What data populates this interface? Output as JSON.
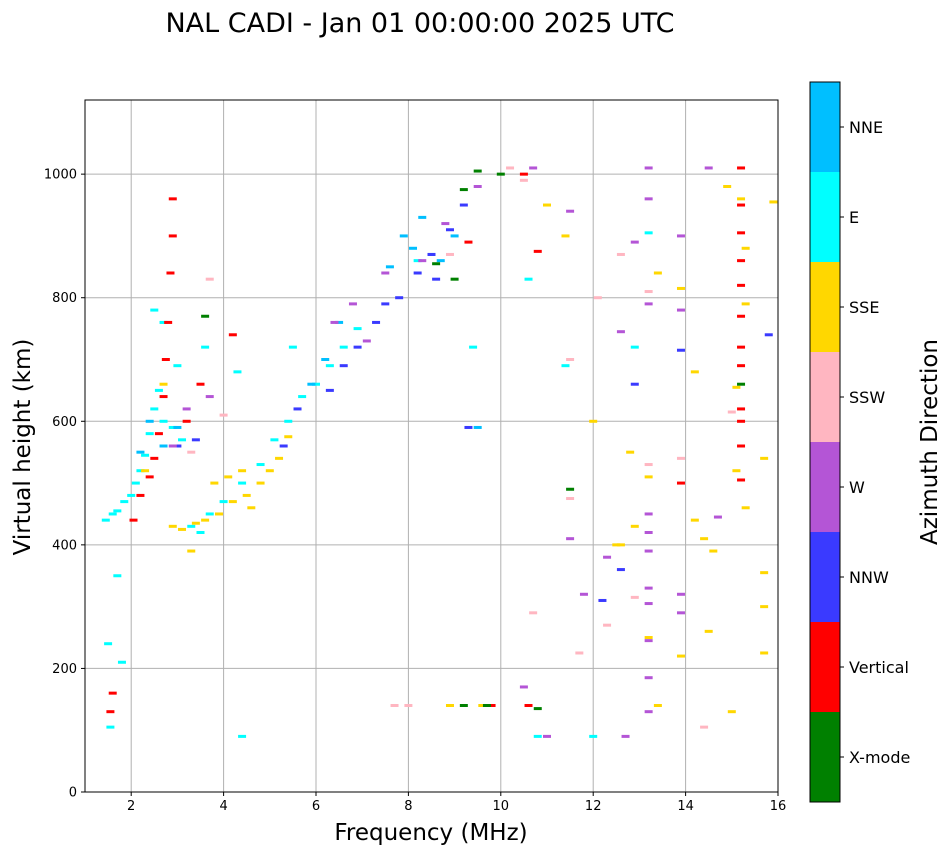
{
  "chart_data": {
    "type": "scatter",
    "title": "NAL CADI - Jan 01 00:00:00 2025 UTC",
    "xlabel": "Frequency (MHz)",
    "ylabel": "Virtual height (km)",
    "xlim": [
      1.0,
      16.0
    ],
    "ylim": [
      0,
      1120
    ],
    "xticks": [
      2,
      4,
      6,
      8,
      10,
      12,
      14,
      16
    ],
    "yticks": [
      0,
      200,
      400,
      600,
      800,
      1000
    ],
    "grid": true,
    "colorbar": {
      "title": "Azimuth Direction",
      "categories": [
        {
          "name": "X-mode",
          "color": "#008000"
        },
        {
          "name": "Vertical",
          "color": "#ff0000"
        },
        {
          "name": "NNW",
          "color": "#3a3aff"
        },
        {
          "name": "W",
          "color": "#b455d6"
        },
        {
          "name": "SSW",
          "color": "#ffb6c1"
        },
        {
          "name": "SSE",
          "color": "#ffd700"
        },
        {
          "name": "E",
          "color": "#00ffff"
        },
        {
          "name": "NNE",
          "color": "#00bfff"
        }
      ]
    },
    "traces": [
      {
        "category": "E",
        "points": [
          [
            1.45,
            440
          ],
          [
            1.6,
            450
          ],
          [
            1.7,
            455
          ],
          [
            1.85,
            470
          ],
          [
            2.0,
            480
          ],
          [
            2.1,
            500
          ],
          [
            2.2,
            520
          ],
          [
            2.3,
            545
          ],
          [
            2.4,
            580
          ],
          [
            2.5,
            620
          ],
          [
            2.6,
            650
          ],
          [
            2.7,
            600
          ],
          [
            2.9,
            590
          ],
          [
            3.1,
            570
          ],
          [
            3.3,
            430
          ],
          [
            3.5,
            420
          ],
          [
            3.7,
            450
          ],
          [
            4.0,
            470
          ],
          [
            4.4,
            500
          ],
          [
            4.8,
            530
          ],
          [
            5.1,
            570
          ],
          [
            5.4,
            600
          ],
          [
            5.7,
            640
          ],
          [
            6.0,
            660
          ],
          [
            6.3,
            690
          ],
          [
            6.6,
            720
          ],
          [
            6.9,
            750
          ],
          [
            2.5,
            780
          ],
          [
            2.7,
            760
          ],
          [
            3.0,
            690
          ],
          [
            3.6,
            720
          ],
          [
            4.3,
            680
          ],
          [
            5.5,
            720
          ],
          [
            8.2,
            860
          ],
          [
            9.4,
            720
          ],
          [
            10.6,
            830
          ],
          [
            10.8,
            90
          ],
          [
            11.4,
            690
          ],
          [
            12.0,
            90
          ],
          [
            12.9,
            720
          ],
          [
            13.2,
            905
          ],
          [
            4.4,
            90
          ],
          [
            1.5,
            240
          ],
          [
            1.7,
            350
          ],
          [
            1.55,
            105
          ],
          [
            1.8,
            210
          ]
        ]
      },
      {
        "category": "NNE",
        "points": [
          [
            2.2,
            550
          ],
          [
            2.4,
            600
          ],
          [
            2.7,
            560
          ],
          [
            3.0,
            590
          ],
          [
            5.9,
            660
          ],
          [
            6.2,
            700
          ],
          [
            6.5,
            760
          ],
          [
            7.6,
            850
          ],
          [
            8.1,
            880
          ],
          [
            8.5,
            870
          ],
          [
            8.7,
            860
          ],
          [
            9.0,
            900
          ],
          [
            9.5,
            590
          ],
          [
            8.3,
            930
          ],
          [
            7.9,
            900
          ]
        ]
      },
      {
        "category": "SSE",
        "points": [
          [
            2.9,
            430
          ],
          [
            3.1,
            425
          ],
          [
            3.4,
            435
          ],
          [
            3.6,
            440
          ],
          [
            3.9,
            450
          ],
          [
            4.2,
            470
          ],
          [
            4.5,
            480
          ],
          [
            4.8,
            500
          ],
          [
            5.0,
            520
          ],
          [
            5.2,
            540
          ],
          [
            4.1,
            510
          ],
          [
            4.4,
            520
          ],
          [
            4.6,
            460
          ],
          [
            3.8,
            500
          ],
          [
            5.4,
            575
          ],
          [
            3.3,
            390
          ],
          [
            2.3,
            520
          ],
          [
            2.7,
            660
          ],
          [
            11.0,
            950
          ],
          [
            11.4,
            900
          ],
          [
            12.0,
            600
          ],
          [
            12.5,
            400
          ],
          [
            12.8,
            550
          ],
          [
            13.2,
            510
          ],
          [
            13.2,
            250
          ],
          [
            13.4,
            840
          ],
          [
            13.9,
            815
          ],
          [
            14.2,
            680
          ],
          [
            14.2,
            440
          ],
          [
            14.4,
            410
          ],
          [
            14.6,
            390
          ],
          [
            14.9,
            980
          ],
          [
            15.1,
            655
          ],
          [
            15.1,
            520
          ],
          [
            15.2,
            960
          ],
          [
            15.3,
            880
          ],
          [
            15.3,
            790
          ],
          [
            15.3,
            460
          ],
          [
            15.7,
            540
          ],
          [
            15.7,
            355
          ],
          [
            15.7,
            300
          ],
          [
            15.7,
            225
          ],
          [
            15.0,
            130
          ],
          [
            14.5,
            260
          ],
          [
            13.9,
            220
          ],
          [
            13.4,
            140
          ],
          [
            12.6,
            400
          ],
          [
            12.9,
            430
          ],
          [
            8.9,
            140
          ],
          [
            9.6,
            140
          ],
          [
            15.9,
            955
          ]
        ]
      },
      {
        "category": "Vertical",
        "points": [
          [
            2.05,
            440
          ],
          [
            2.2,
            480
          ],
          [
            2.4,
            510
          ],
          [
            2.5,
            540
          ],
          [
            2.6,
            580
          ],
          [
            2.7,
            640
          ],
          [
            2.75,
            700
          ],
          [
            2.8,
            760
          ],
          [
            2.85,
            840
          ],
          [
            2.9,
            900
          ],
          [
            2.9,
            960
          ],
          [
            3.2,
            600
          ],
          [
            3.5,
            660
          ],
          [
            4.2,
            740
          ],
          [
            1.6,
            160
          ],
          [
            1.55,
            130
          ],
          [
            9.8,
            140
          ],
          [
            10.5,
            1000
          ],
          [
            10.8,
            875
          ],
          [
            10.6,
            140
          ],
          [
            13.9,
            500
          ],
          [
            15.2,
            1010
          ],
          [
            15.2,
            950
          ],
          [
            15.2,
            905
          ],
          [
            15.2,
            860
          ],
          [
            15.2,
            820
          ],
          [
            15.2,
            770
          ],
          [
            15.2,
            720
          ],
          [
            15.2,
            690
          ],
          [
            15.2,
            620
          ],
          [
            15.2,
            600
          ],
          [
            15.2,
            560
          ],
          [
            15.2,
            505
          ],
          [
            9.3,
            890
          ]
        ]
      },
      {
        "category": "NNW",
        "points": [
          [
            3.0,
            560
          ],
          [
            3.4,
            570
          ],
          [
            5.3,
            560
          ],
          [
            5.6,
            620
          ],
          [
            6.3,
            650
          ],
          [
            6.6,
            690
          ],
          [
            6.9,
            720
          ],
          [
            7.3,
            760
          ],
          [
            7.8,
            800
          ],
          [
            8.2,
            840
          ],
          [
            8.5,
            870
          ],
          [
            8.9,
            910
          ],
          [
            9.2,
            950
          ],
          [
            9.3,
            590
          ],
          [
            12.9,
            660
          ],
          [
            13.9,
            715
          ],
          [
            15.8,
            740
          ],
          [
            12.2,
            310
          ],
          [
            12.6,
            360
          ],
          [
            8.6,
            830
          ],
          [
            7.5,
            790
          ]
        ]
      },
      {
        "category": "W",
        "points": [
          [
            2.9,
            560
          ],
          [
            3.2,
            620
          ],
          [
            3.7,
            640
          ],
          [
            6.4,
            760
          ],
          [
            6.8,
            790
          ],
          [
            7.1,
            730
          ],
          [
            7.5,
            840
          ],
          [
            8.3,
            860
          ],
          [
            8.8,
            920
          ],
          [
            9.5,
            980
          ],
          [
            10.7,
            1010
          ],
          [
            11.5,
            940
          ],
          [
            13.2,
            1010
          ],
          [
            13.2,
            960
          ],
          [
            13.2,
            790
          ],
          [
            13.2,
            450
          ],
          [
            13.2,
            420
          ],
          [
            13.2,
            390
          ],
          [
            13.2,
            330
          ],
          [
            13.2,
            305
          ],
          [
            13.2,
            245
          ],
          [
            13.2,
            185
          ],
          [
            13.2,
            130
          ],
          [
            13.9,
            900
          ],
          [
            13.9,
            780
          ],
          [
            13.9,
            320
          ],
          [
            13.9,
            290
          ],
          [
            14.5,
            1010
          ],
          [
            14.7,
            445
          ],
          [
            12.9,
            890
          ],
          [
            12.6,
            745
          ],
          [
            11.5,
            410
          ],
          [
            11.8,
            320
          ],
          [
            12.3,
            380
          ],
          [
            10.5,
            170
          ],
          [
            11.0,
            90
          ],
          [
            12.7,
            90
          ]
        ]
      },
      {
        "category": "SSW",
        "points": [
          [
            3.3,
            550
          ],
          [
            3.7,
            830
          ],
          [
            4.0,
            610
          ],
          [
            8.9,
            870
          ],
          [
            10.2,
            1010
          ],
          [
            10.5,
            990
          ],
          [
            11.5,
            700
          ],
          [
            12.1,
            800
          ],
          [
            12.6,
            870
          ],
          [
            13.2,
            810
          ],
          [
            13.2,
            530
          ],
          [
            13.9,
            540
          ],
          [
            15.0,
            615
          ],
          [
            10.7,
            290
          ],
          [
            12.3,
            270
          ],
          [
            12.9,
            315
          ],
          [
            14.4,
            105
          ],
          [
            7.7,
            140
          ],
          [
            8.0,
            140
          ],
          [
            11.7,
            225
          ],
          [
            11.5,
            475
          ]
        ]
      },
      {
        "category": "X-mode",
        "points": [
          [
            9.2,
            140
          ],
          [
            9.7,
            140
          ],
          [
            10.0,
            1000
          ],
          [
            9.5,
            1005
          ],
          [
            9.2,
            975
          ],
          [
            8.6,
            855
          ],
          [
            9.0,
            830
          ],
          [
            3.6,
            770
          ],
          [
            11.5,
            490
          ],
          [
            10.8,
            135
          ],
          [
            15.2,
            660
          ]
        ]
      }
    ]
  }
}
